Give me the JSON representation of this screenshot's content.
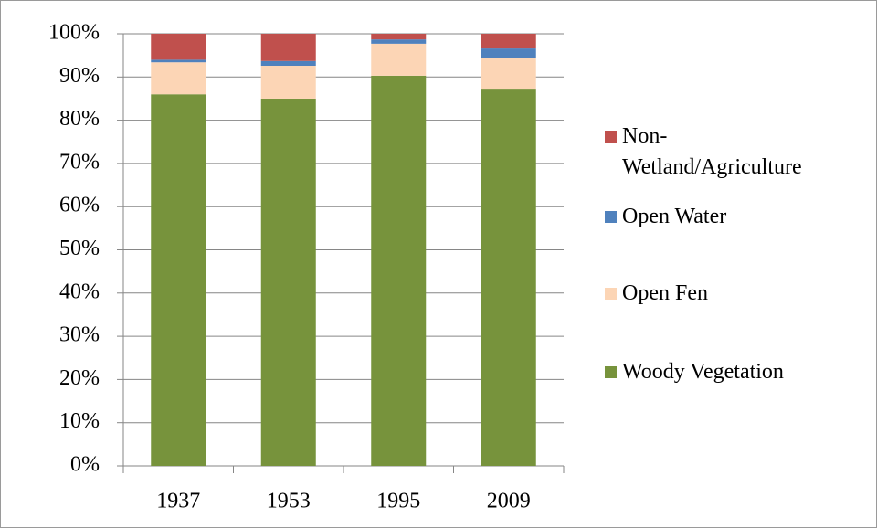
{
  "chart_data": {
    "type": "stacked_bar",
    "categories": [
      "1937",
      "1953",
      "1995",
      "2009"
    ],
    "series": [
      {
        "name": "Woody Vegetation",
        "color": "#77933c",
        "values": [
          86.0,
          85.0,
          90.3,
          87.3
        ]
      },
      {
        "name": "Open Fen",
        "color": "#fcd5b5",
        "values": [
          7.4,
          7.6,
          7.4,
          7.0
        ]
      },
      {
        "name": "Open Water",
        "color": "#4f81bd",
        "values": [
          0.6,
          1.1,
          1.0,
          2.3
        ]
      },
      {
        "name": "Non-Wetland/Agriculture",
        "color": "#c0504d",
        "values": [
          6.0,
          6.3,
          1.3,
          3.4
        ]
      }
    ],
    "ylim": [
      0,
      100
    ],
    "yticks": [
      {
        "value": 0,
        "label": "0%"
      },
      {
        "value": 10,
        "label": "10%"
      },
      {
        "value": 20,
        "label": "20%"
      },
      {
        "value": 30,
        "label": "30%"
      },
      {
        "value": 40,
        "label": "40%"
      },
      {
        "value": 50,
        "label": "50%"
      },
      {
        "value": 60,
        "label": "60%"
      },
      {
        "value": 70,
        "label": "70%"
      },
      {
        "value": 80,
        "label": "80%"
      },
      {
        "value": 90,
        "label": "90%"
      },
      {
        "value": 100,
        "label": "100%"
      }
    ],
    "grid": true,
    "legend": "right"
  }
}
